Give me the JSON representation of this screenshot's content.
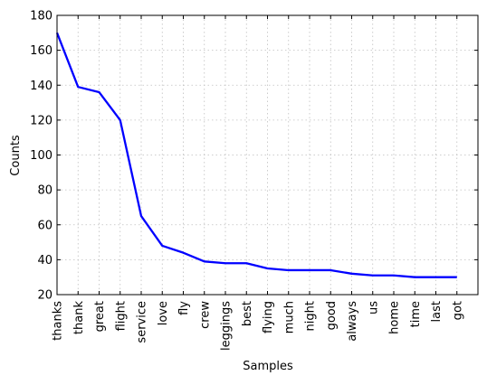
{
  "chart_data": {
    "type": "line",
    "title": "",
    "xlabel": "Samples",
    "ylabel": "Counts",
    "categories": [
      "thanks",
      "thank",
      "great",
      "flight",
      "service",
      "love",
      "fly",
      "crew",
      "leggings",
      "best",
      "flying",
      "much",
      "night",
      "good",
      "always",
      "us",
      "home",
      "time",
      "last",
      "got"
    ],
    "series": [
      {
        "values": [
          170,
          139,
          136,
          120,
          65,
          48,
          44,
          39,
          38,
          38,
          35,
          34,
          34,
          34,
          32,
          31,
          31,
          30,
          30,
          30
        ]
      }
    ],
    "ylim": [
      20,
      180
    ],
    "yticks": [
      20,
      40,
      60,
      80,
      100,
      120,
      140,
      160,
      180
    ],
    "grid": true,
    "legend": "none",
    "colors": {
      "line": "#0000ff",
      "grid": "#bfbfbf",
      "frame": "#000000"
    }
  }
}
